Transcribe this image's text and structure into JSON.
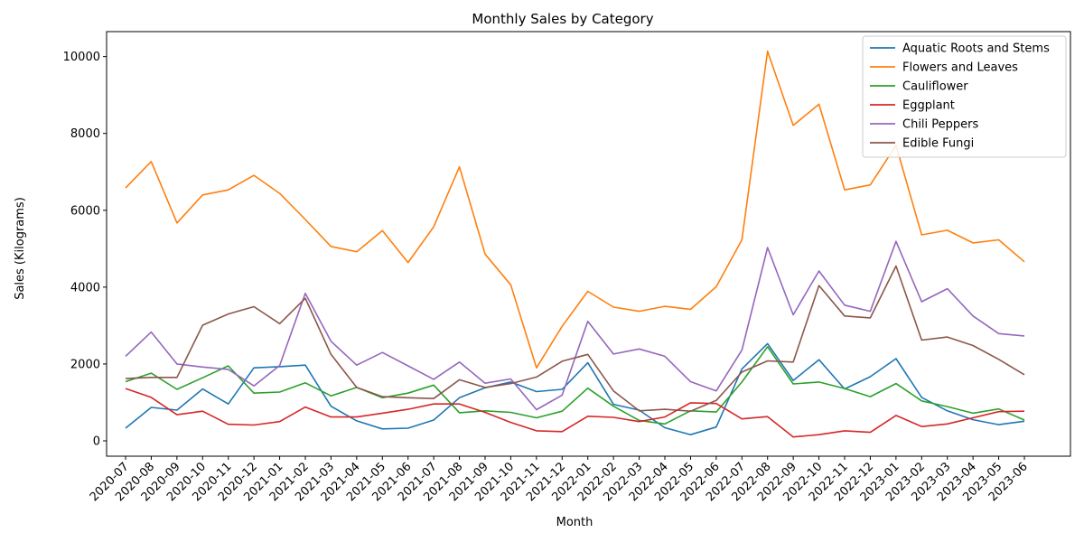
{
  "chart_data": {
    "type": "line",
    "title": "Monthly Sales by Category",
    "xlabel": "Month",
    "ylabel": "Sales (Kilograms)",
    "ylim": [
      -400,
      10650
    ],
    "yticks": [
      0,
      2000,
      4000,
      6000,
      8000,
      10000
    ],
    "legend_position": "top-right",
    "grid": false,
    "x": [
      "2020-07",
      "2020-08",
      "2020-09",
      "2020-10",
      "2020-11",
      "2020-12",
      "2021-01",
      "2021-02",
      "2021-03",
      "2021-04",
      "2021-05",
      "2021-06",
      "2021-07",
      "2021-08",
      "2021-09",
      "2021-10",
      "2021-11",
      "2021-12",
      "2022-01",
      "2022-02",
      "2022-03",
      "2022-04",
      "2022-05",
      "2022-06",
      "2022-07",
      "2022-08",
      "2022-09",
      "2022-10",
      "2022-11",
      "2022-12",
      "2023-01",
      "2023-02",
      "2023-03",
      "2023-04",
      "2023-05",
      "2023-06"
    ],
    "series": [
      {
        "name": "Aquatic Roots and Stems",
        "color": "#1f77b4",
        "values": [
          330,
          870,
          800,
          1350,
          960,
          1900,
          1930,
          1970,
          900,
          520,
          310,
          330,
          540,
          1120,
          1380,
          1530,
          1280,
          1340,
          2030,
          950,
          800,
          340,
          160,
          360,
          1870,
          2530,
          1570,
          2110,
          1350,
          1670,
          2140,
          1130,
          780,
          550,
          420,
          510
        ]
      },
      {
        "name": "Flowers and Leaves",
        "color": "#ff7f0e",
        "values": [
          6580,
          7270,
          5670,
          6400,
          6530,
          6910,
          6440,
          5760,
          5060,
          4920,
          5470,
          4640,
          5570,
          7130,
          4860,
          4060,
          1900,
          2980,
          3890,
          3480,
          3370,
          3500,
          3420,
          4010,
          5230,
          10140,
          8210,
          8760,
          6530,
          6660,
          7690,
          5360,
          5480,
          5150,
          5230,
          4660
        ]
      },
      {
        "name": "Cauliflower",
        "color": "#2ca02c",
        "values": [
          1540,
          1760,
          1340,
          1640,
          1950,
          1240,
          1270,
          1510,
          1170,
          1390,
          1120,
          1240,
          1450,
          730,
          780,
          740,
          600,
          770,
          1370,
          900,
          530,
          440,
          780,
          750,
          1530,
          2450,
          1480,
          1530,
          1360,
          1150,
          1490,
          1040,
          890,
          720,
          830,
          540
        ]
      },
      {
        "name": "Eggplant",
        "color": "#d62728",
        "values": [
          1360,
          1130,
          680,
          770,
          430,
          410,
          500,
          880,
          620,
          620,
          720,
          820,
          960,
          960,
          740,
          480,
          260,
          240,
          640,
          610,
          500,
          620,
          990,
          970,
          570,
          630,
          100,
          160,
          260,
          220,
          660,
          370,
          440,
          600,
          760,
          770
        ]
      },
      {
        "name": "Chili Peppers",
        "color": "#9467bd",
        "values": [
          2200,
          2830,
          2000,
          1920,
          1860,
          1430,
          1960,
          3840,
          2590,
          1970,
          2300,
          1950,
          1600,
          2050,
          1500,
          1610,
          810,
          1190,
          3110,
          2260,
          2390,
          2200,
          1540,
          1300,
          2360,
          5030,
          3280,
          4420,
          3530,
          3370,
          5190,
          3620,
          3960,
          3250,
          2790,
          2730
        ]
      },
      {
        "name": "Edible Fungi",
        "color": "#8c564b",
        "values": [
          1620,
          1650,
          1650,
          3010,
          3300,
          3490,
          3050,
          3710,
          2250,
          1390,
          1150,
          1120,
          1100,
          1590,
          1390,
          1490,
          1660,
          2070,
          2250,
          1300,
          780,
          820,
          770,
          1050,
          1790,
          2080,
          2050,
          4040,
          3250,
          3200,
          4550,
          2620,
          2700,
          2480,
          2120,
          1720
        ]
      }
    ]
  }
}
